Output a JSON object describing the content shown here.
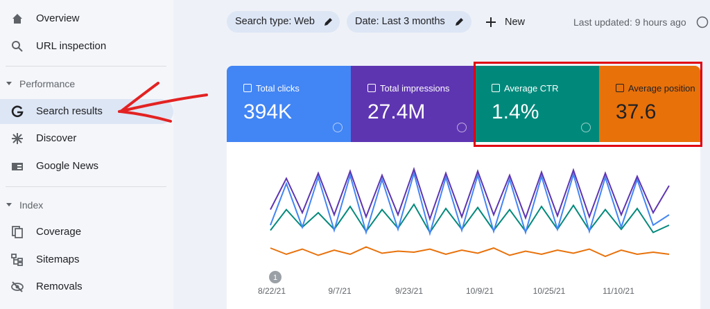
{
  "nav_top": [
    "Overview",
    "URL inspection"
  ],
  "performance": {
    "title": "Performance",
    "items": [
      "Search results",
      "Discover",
      "Google News"
    ]
  },
  "index": {
    "title": "Index",
    "items": [
      "Coverage",
      "Sitemaps",
      "Removals"
    ]
  },
  "toolbar": {
    "chips": [
      "Search type: Web",
      "Date: Last 3 months"
    ],
    "new": "New",
    "last_updated": "Last updated: 9 hours ago"
  },
  "chart_data": {
    "type": "line",
    "ylim": [
      0,
      100
    ],
    "x_labels": [
      "8/22/21",
      "9/7/21",
      "9/23/21",
      "10/9/21",
      "10/25/21",
      "11/10/21"
    ],
    "annotation": "1",
    "series": [
      {
        "name": "Total clicks",
        "total": "394K",
        "color": "#4285f4",
        "values": [
          40,
          80,
          38,
          86,
          35,
          88,
          33,
          84,
          36,
          90,
          32,
          86,
          35,
          88,
          34,
          84,
          33,
          87,
          36,
          89,
          34,
          86,
          38,
          84,
          40,
          50
        ]
      },
      {
        "name": "Total impressions",
        "total": "27.4M",
        "color": "#5e35b1",
        "values": [
          55,
          85,
          52,
          90,
          50,
          92,
          48,
          88,
          50,
          94,
          46,
          90,
          48,
          92,
          50,
          88,
          47,
          91,
          49,
          93,
          48,
          90,
          50,
          87,
          52,
          78
        ]
      },
      {
        "name": "Average CTR",
        "total": "1.4%",
        "color": "#00897b",
        "values": [
          35,
          55,
          38,
          52,
          36,
          58,
          34,
          55,
          37,
          60,
          33,
          56,
          36,
          57,
          35,
          55,
          34,
          58,
          36,
          59,
          35,
          55,
          36,
          56,
          33,
          40
        ]
      },
      {
        "name": "Average position",
        "total": "37.6",
        "color": "#e8710a",
        "values": [
          18,
          12,
          17,
          11,
          16,
          12,
          19,
          13,
          15,
          14,
          17,
          12,
          16,
          13,
          18,
          11,
          15,
          12,
          16,
          13,
          17,
          10,
          16,
          12,
          14,
          12
        ]
      }
    ]
  }
}
